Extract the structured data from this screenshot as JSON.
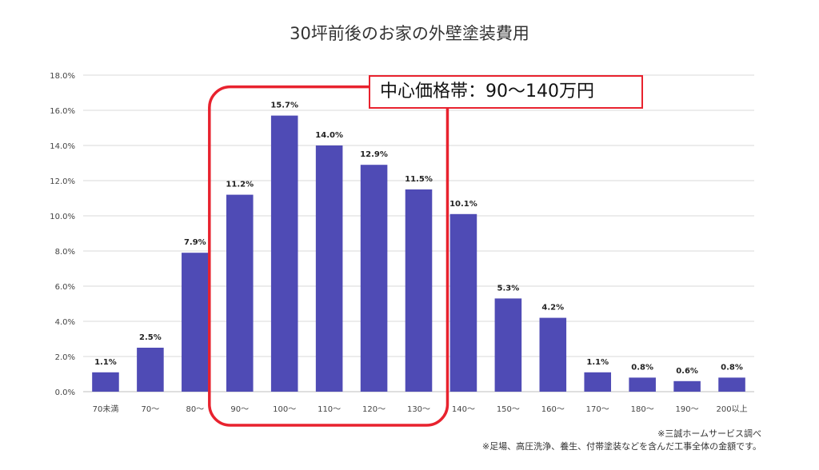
{
  "chart_data": {
    "type": "bar",
    "title": "30坪前後のお家の外壁塗装費用",
    "xlabel": "",
    "ylabel": "",
    "categories": [
      "70未満",
      "70〜",
      "80〜",
      "90〜",
      "100〜",
      "110〜",
      "120〜",
      "130〜",
      "140〜",
      "150〜",
      "160〜",
      "170〜",
      "180〜",
      "190〜",
      "200以上"
    ],
    "values": [
      1.1,
      2.5,
      7.9,
      11.2,
      15.7,
      14.0,
      12.9,
      11.5,
      10.1,
      5.3,
      4.2,
      1.1,
      0.8,
      0.6,
      0.8
    ],
    "value_labels": [
      "1.1%",
      "2.5%",
      "7.9%",
      "11.2%",
      "15.7%",
      "14.0%",
      "12.9%",
      "11.5%",
      "10.1%",
      "5.3%",
      "4.2%",
      "1.1%",
      "0.8%",
      "0.6%",
      "0.8%"
    ],
    "ylim": [
      0,
      18
    ],
    "yticks": [
      "0.0%",
      "2.0%",
      "4.0%",
      "6.0%",
      "8.0%",
      "10.0%",
      "12.0%",
      "14.0%",
      "16.0%",
      "18.0%"
    ],
    "grid": true,
    "bar_color": "#4f4bb5",
    "highlight_color": "#e8222e",
    "highlight_range": [
      "90〜",
      "130〜"
    ]
  },
  "callout": {
    "text": "中心価格帯：90〜140万円"
  },
  "notes": {
    "source": "※三誠ホームサービス調べ",
    "detail": "※足場、高圧洗浄、養生、付帯塗装などを含んだ工事全体の金額です。"
  }
}
